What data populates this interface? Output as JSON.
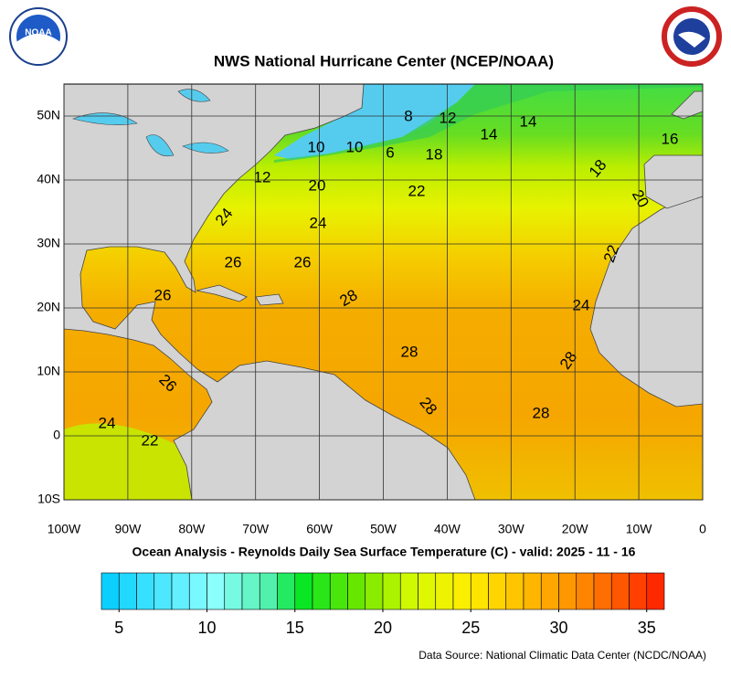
{
  "header": {
    "title": "NWS National Hurricane Center (NCEP/NOAA)"
  },
  "map": {
    "xlim": [
      -100,
      0
    ],
    "ylim": [
      -10,
      55
    ],
    "xticks": [
      {
        "value": -100,
        "label": "100W"
      },
      {
        "value": -90,
        "label": "90W"
      },
      {
        "value": -80,
        "label": "80W"
      },
      {
        "value": -70,
        "label": "70W"
      },
      {
        "value": -60,
        "label": "60W"
      },
      {
        "value": -50,
        "label": "50W"
      },
      {
        "value": -40,
        "label": "40W"
      },
      {
        "value": -30,
        "label": "30W"
      },
      {
        "value": -20,
        "label": "20W"
      },
      {
        "value": -10,
        "label": "10W"
      },
      0
    ],
    "yticks": [
      {
        "value": -10,
        "label": "10S"
      },
      0,
      {
        "value": 10,
        "label": "10N"
      },
      {
        "value": 20,
        "label": "20N"
      },
      {
        "value": 30,
        "label": "30N"
      },
      {
        "value": 40,
        "label": "40N"
      },
      {
        "value": 50,
        "label": "50N"
      }
    ],
    "contour_labels": [
      8,
      12,
      14,
      14,
      16,
      10,
      10,
      6,
      18,
      18,
      12,
      20,
      22,
      20,
      24,
      24,
      22,
      26,
      26,
      28,
      26,
      24,
      28,
      28,
      26,
      28,
      28,
      24,
      22
    ]
  },
  "caption": "Ocean Analysis - Reynolds Daily Sea Surface Temperature (C) - valid: 2025 - 11 - 16",
  "colorbar": {
    "range": [
      4,
      36
    ],
    "ticks": [
      5,
      10,
      15,
      20,
      25,
      30,
      35
    ]
  },
  "source": "Data Source: National Climatic Data Center (NCDC/NOAA)"
}
